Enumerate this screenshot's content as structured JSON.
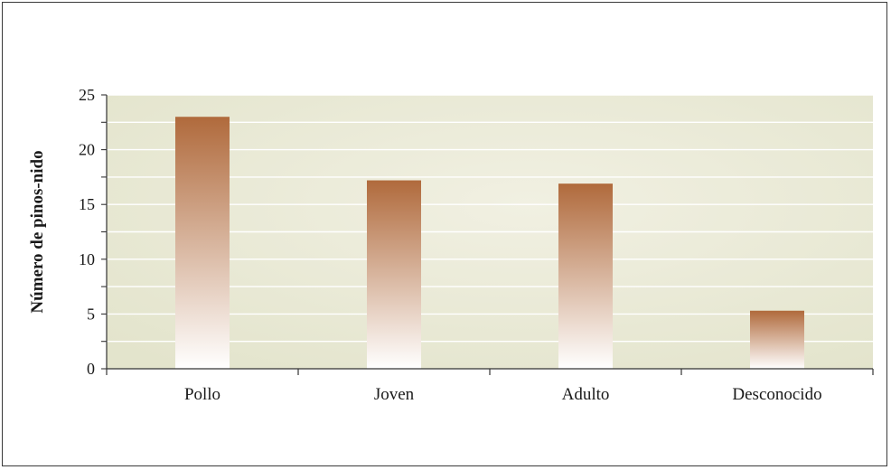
{
  "chart_data": {
    "type": "bar",
    "title": "",
    "xlabel": "",
    "ylabel": "Número de pinos-nido",
    "categories": [
      "Pollo",
      "Joven",
      "Adulto",
      "Desconocido"
    ],
    "values": [
      23,
      17.2,
      16.9,
      5.3
    ],
    "ylim": [
      0,
      25
    ],
    "yticks": [
      0,
      5,
      10,
      15,
      20,
      25
    ],
    "grid": true,
    "legend": "none",
    "colors": {
      "bar_top": "#b06a3c",
      "bar_bottom": "#ffffff",
      "plot_bg_light": "#f1f0e2",
      "plot_bg_dark": "#e3e4cc",
      "grid": "#ffffff",
      "axis": "#333333"
    }
  }
}
